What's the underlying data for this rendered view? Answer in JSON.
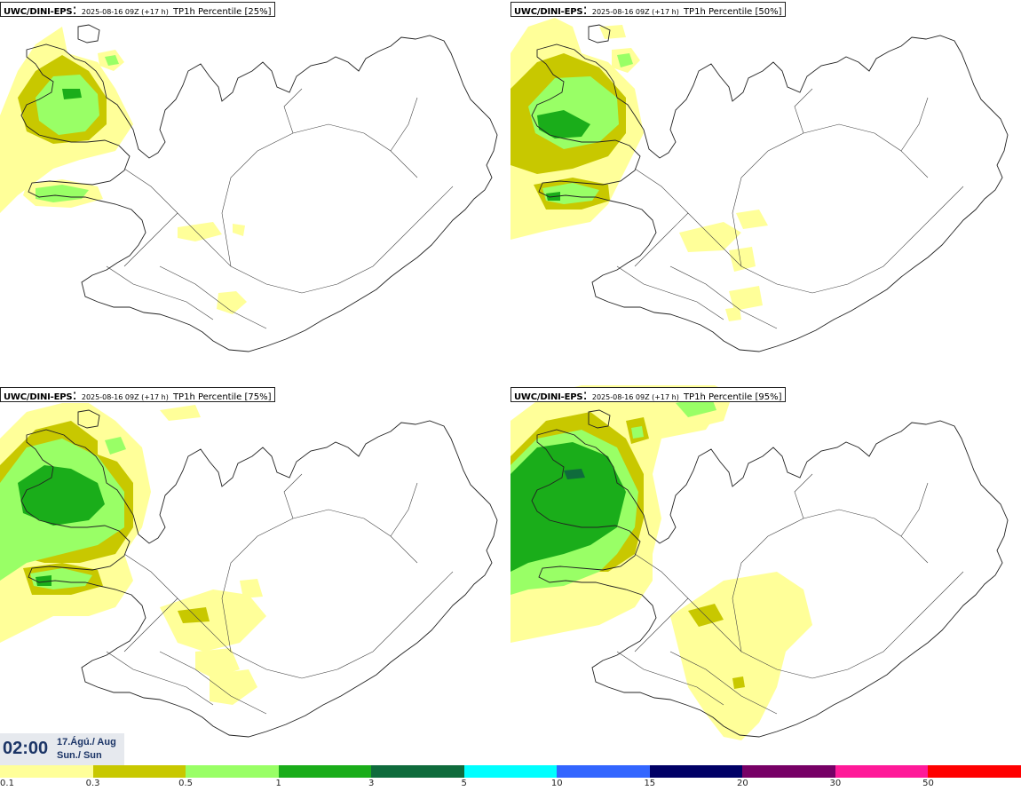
{
  "panels": [
    {
      "model": "UWC/DINI-EPS",
      "run": "2025-08-16 09Z (+17 h)",
      "field": "TP1h Percentile [25%]",
      "percentile": 25
    },
    {
      "model": "UWC/DINI-EPS",
      "run": "2025-08-16 09Z (+17 h)",
      "field": "TP1h Percentile [50%]",
      "percentile": 50
    },
    {
      "model": "UWC/DINI-EPS",
      "run": "2025-08-16 09Z (+17 h)",
      "field": "TP1h Percentile [75%]",
      "percentile": 75
    },
    {
      "model": "UWC/DINI-EPS",
      "run": "2025-08-16 09Z (+17 h)",
      "field": "TP1h Percentile [95%]",
      "percentile": 95
    }
  ],
  "valid_time": {
    "time": "02:00",
    "date": "17.Ágú./ Aug",
    "weekday": "Sun./ Sun"
  },
  "legend": {
    "colors": [
      "#ffff99",
      "#c8c800",
      "#99ff66",
      "#1aad1a",
      "#0f6b3c",
      "#00ffff",
      "#3366ff",
      "#000066",
      "#770066",
      "#ff1a99",
      "#ff0000"
    ],
    "labels": [
      "0.1",
      "0.3",
      "0.5",
      "1",
      "3",
      "5",
      "10",
      "15",
      "20",
      "30",
      "50"
    ]
  }
}
